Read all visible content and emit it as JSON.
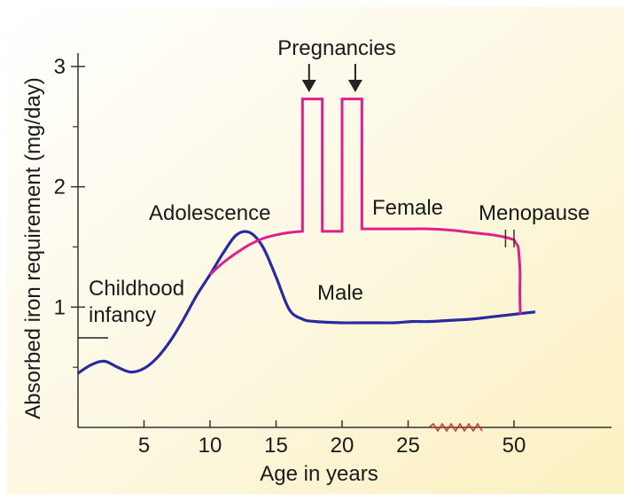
{
  "chart_data": {
    "type": "line",
    "title": "",
    "xlabel": "Age in years",
    "ylabel": "Absorbed iron requirement (mg/day)",
    "x_ticks": [
      "5",
      "10",
      "15",
      "20",
      "25",
      "50"
    ],
    "y_ticks": [
      "1",
      "2",
      "3"
    ],
    "ylim": [
      0,
      3
    ],
    "x_axis_break": "between 25 and 50",
    "grid": false,
    "colors": {
      "male": "#2a2aa0",
      "female": "#e0208a",
      "axis_break": "#d03020",
      "background": "#fdf6d4"
    },
    "series": [
      {
        "name": "Male",
        "x": [
          0,
          1,
          2,
          3,
          4,
          5,
          6,
          7,
          8,
          9,
          10,
          11,
          12,
          13,
          14,
          15,
          16,
          17,
          18,
          20,
          22,
          24,
          26,
          30,
          35,
          40,
          45,
          50,
          55
        ],
        "y": [
          0.45,
          0.52,
          0.55,
          0.5,
          0.46,
          0.49,
          0.58,
          0.72,
          0.9,
          1.1,
          1.27,
          1.45,
          1.6,
          1.62,
          1.5,
          1.25,
          0.98,
          0.9,
          0.88,
          0.87,
          0.87,
          0.87,
          0.88,
          0.88,
          0.89,
          0.9,
          0.92,
          0.94,
          0.96
        ]
      },
      {
        "name": "Female",
        "x": [
          10,
          11,
          12,
          13,
          14,
          15,
          16,
          17,
          17,
          18.5,
          18.5,
          20,
          20,
          21.5,
          21.5,
          25,
          30,
          35,
          40,
          45,
          48,
          50,
          51,
          51.5
        ],
        "y": [
          1.27,
          1.37,
          1.45,
          1.52,
          1.57,
          1.6,
          1.62,
          1.63,
          2.73,
          2.73,
          1.63,
          1.63,
          2.73,
          2.73,
          1.65,
          1.65,
          1.65,
          1.64,
          1.62,
          1.6,
          1.58,
          1.56,
          1.5,
          0.94
        ]
      }
    ],
    "annotations": {
      "pregnancies": "Pregnancies",
      "adolescence": "Adolescence",
      "female": "Female",
      "menopause": "Menopause",
      "male": "Male",
      "childhood_line1": "Childhood",
      "childhood_line2": "infancy"
    },
    "pregnancy_arrow_x": [
      17.5,
      21
    ]
  }
}
